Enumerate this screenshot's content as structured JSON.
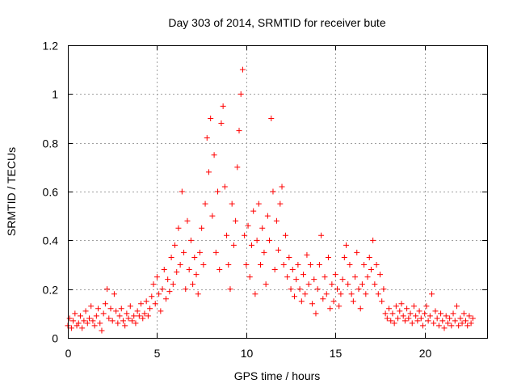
{
  "chart_data": {
    "type": "scatter",
    "title": "Day 303 of 2014, SRMTID for receiver bute",
    "xlabel": "GPS time / hours",
    "ylabel": "SRMTID / TECUs",
    "xlim": [
      0,
      23.5
    ],
    "ylim": [
      0,
      1.2
    ],
    "x_ticks": [
      0,
      5,
      10,
      15,
      20
    ],
    "x_tick_labels": [
      "0",
      "5",
      "10",
      "15",
      "20"
    ],
    "y_ticks": [
      0,
      0.2,
      0.4,
      0.6,
      0.8,
      1.0,
      1.2
    ],
    "y_tick_labels": [
      "0",
      "0.2",
      "0.4",
      "0.6",
      "0.8",
      "1",
      "1.2"
    ],
    "grid": true,
    "marker": "+",
    "series": [
      {
        "name": "SRMTID",
        "color": "#ff0000",
        "points": [
          [
            0.0,
            0.05
          ],
          [
            0.1,
            0.08
          ],
          [
            0.2,
            0.04
          ],
          [
            0.3,
            0.07
          ],
          [
            0.4,
            0.1
          ],
          [
            0.5,
            0.05
          ],
          [
            0.6,
            0.06
          ],
          [
            0.7,
            0.09
          ],
          [
            0.8,
            0.04
          ],
          [
            0.9,
            0.07
          ],
          [
            1.0,
            0.11
          ],
          [
            1.1,
            0.06
          ],
          [
            1.2,
            0.08
          ],
          [
            1.3,
            0.13
          ],
          [
            1.4,
            0.07
          ],
          [
            1.5,
            0.05
          ],
          [
            1.6,
            0.09
          ],
          [
            1.7,
            0.12
          ],
          [
            1.8,
            0.06
          ],
          [
            1.9,
            0.03
          ],
          [
            2.0,
            0.1
          ],
          [
            2.1,
            0.14
          ],
          [
            2.2,
            0.2
          ],
          [
            2.3,
            0.08
          ],
          [
            2.4,
            0.12
          ],
          [
            2.5,
            0.07
          ],
          [
            2.6,
            0.18
          ],
          [
            2.7,
            0.11
          ],
          [
            2.8,
            0.06
          ],
          [
            2.9,
            0.09
          ],
          [
            3.0,
            0.12
          ],
          [
            3.1,
            0.07
          ],
          [
            3.2,
            0.05
          ],
          [
            3.3,
            0.1
          ],
          [
            3.4,
            0.08
          ],
          [
            3.5,
            0.13
          ],
          [
            3.6,
            0.07
          ],
          [
            3.7,
            0.09
          ],
          [
            3.8,
            0.06
          ],
          [
            3.9,
            0.11
          ],
          [
            4.0,
            0.09
          ],
          [
            4.1,
            0.14
          ],
          [
            4.2,
            0.08
          ],
          [
            4.3,
            0.1
          ],
          [
            4.4,
            0.15
          ],
          [
            4.5,
            0.09
          ],
          [
            4.6,
            0.12
          ],
          [
            4.7,
            0.17
          ],
          [
            4.8,
            0.22
          ],
          [
            4.9,
            0.14
          ],
          [
            5.0,
            0.25
          ],
          [
            5.1,
            0.18
          ],
          [
            5.2,
            0.11
          ],
          [
            5.3,
            0.2
          ],
          [
            5.4,
            0.28
          ],
          [
            5.5,
            0.16
          ],
          [
            5.6,
            0.24
          ],
          [
            5.7,
            0.19
          ],
          [
            5.8,
            0.33
          ],
          [
            5.9,
            0.22
          ],
          [
            6.0,
            0.38
          ],
          [
            6.1,
            0.27
          ],
          [
            6.2,
            0.45
          ],
          [
            6.3,
            0.3
          ],
          [
            6.4,
            0.6
          ],
          [
            6.5,
            0.35
          ],
          [
            6.6,
            0.2
          ],
          [
            6.7,
            0.48
          ],
          [
            6.8,
            0.28
          ],
          [
            6.9,
            0.4
          ],
          [
            7.0,
            0.22
          ],
          [
            7.1,
            0.33
          ],
          [
            7.2,
            0.26
          ],
          [
            7.3,
            0.18
          ],
          [
            7.4,
            0.35
          ],
          [
            7.5,
            0.45
          ],
          [
            7.6,
            0.3
          ],
          [
            7.7,
            0.55
          ],
          [
            7.8,
            0.82
          ],
          [
            7.9,
            0.68
          ],
          [
            8.0,
            0.9
          ],
          [
            8.1,
            0.5
          ],
          [
            8.2,
            0.75
          ],
          [
            8.3,
            0.35
          ],
          [
            8.4,
            0.6
          ],
          [
            8.5,
            0.28
          ],
          [
            8.6,
            0.88
          ],
          [
            8.7,
            0.95
          ],
          [
            8.8,
            0.62
          ],
          [
            8.9,
            0.42
          ],
          [
            9.0,
            0.3
          ],
          [
            9.1,
            0.2
          ],
          [
            9.2,
            0.55
          ],
          [
            9.3,
            0.38
          ],
          [
            9.4,
            0.48
          ],
          [
            9.5,
            0.7
          ],
          [
            9.6,
            0.85
          ],
          [
            9.7,
            1.0
          ],
          [
            9.8,
            1.1
          ],
          [
            9.9,
            0.42
          ],
          [
            10.0,
            0.3
          ],
          [
            10.1,
            0.46
          ],
          [
            10.2,
            0.25
          ],
          [
            10.3,
            0.38
          ],
          [
            10.4,
            0.52
          ],
          [
            10.5,
            0.18
          ],
          [
            10.6,
            0.4
          ],
          [
            10.7,
            0.55
          ],
          [
            10.8,
            0.3
          ],
          [
            10.9,
            0.45
          ],
          [
            11.0,
            0.35
          ],
          [
            11.1,
            0.22
          ],
          [
            11.2,
            0.5
          ],
          [
            11.3,
            0.4
          ],
          [
            11.4,
            0.9
          ],
          [
            11.5,
            0.6
          ],
          [
            11.6,
            0.28
          ],
          [
            11.7,
            0.48
          ],
          [
            11.8,
            0.36
          ],
          [
            11.9,
            0.55
          ],
          [
            12.0,
            0.62
          ],
          [
            12.1,
            0.3
          ],
          [
            12.2,
            0.42
          ],
          [
            12.3,
            0.25
          ],
          [
            12.4,
            0.33
          ],
          [
            12.5,
            0.2
          ],
          [
            12.6,
            0.28
          ],
          [
            12.7,
            0.17
          ],
          [
            12.8,
            0.24
          ],
          [
            12.9,
            0.3
          ],
          [
            13.0,
            0.2
          ],
          [
            13.1,
            0.15
          ],
          [
            13.2,
            0.26
          ],
          [
            13.3,
            0.18
          ],
          [
            13.4,
            0.34
          ],
          [
            13.5,
            0.22
          ],
          [
            13.6,
            0.3
          ],
          [
            13.7,
            0.14
          ],
          [
            13.8,
            0.24
          ],
          [
            13.9,
            0.1
          ],
          [
            14.0,
            0.2
          ],
          [
            14.1,
            0.3
          ],
          [
            14.2,
            0.42
          ],
          [
            14.3,
            0.16
          ],
          [
            14.4,
            0.25
          ],
          [
            14.5,
            0.18
          ],
          [
            14.6,
            0.33
          ],
          [
            14.7,
            0.12
          ],
          [
            14.8,
            0.22
          ],
          [
            14.9,
            0.15
          ],
          [
            15.0,
            0.26
          ],
          [
            15.1,
            0.2
          ],
          [
            15.2,
            0.13
          ],
          [
            15.3,
            0.18
          ],
          [
            15.4,
            0.24
          ],
          [
            15.5,
            0.33
          ],
          [
            15.6,
            0.38
          ],
          [
            15.7,
            0.22
          ],
          [
            15.8,
            0.3
          ],
          [
            15.9,
            0.18
          ],
          [
            16.0,
            0.15
          ],
          [
            16.1,
            0.25
          ],
          [
            16.2,
            0.35
          ],
          [
            16.3,
            0.2
          ],
          [
            16.4,
            0.12
          ],
          [
            16.5,
            0.22
          ],
          [
            16.6,
            0.3
          ],
          [
            16.7,
            0.18
          ],
          [
            16.8,
            0.25
          ],
          [
            16.9,
            0.33
          ],
          [
            17.0,
            0.28
          ],
          [
            17.1,
            0.4
          ],
          [
            17.2,
            0.22
          ],
          [
            17.3,
            0.3
          ],
          [
            17.4,
            0.18
          ],
          [
            17.5,
            0.26
          ],
          [
            17.6,
            0.15
          ],
          [
            17.7,
            0.2
          ],
          [
            17.8,
            0.1
          ],
          [
            17.9,
            0.08
          ],
          [
            18.0,
            0.12
          ],
          [
            18.1,
            0.07
          ],
          [
            18.2,
            0.1
          ],
          [
            18.3,
            0.06
          ],
          [
            18.4,
            0.13
          ],
          [
            18.5,
            0.08
          ],
          [
            18.6,
            0.11
          ],
          [
            18.7,
            0.14
          ],
          [
            18.8,
            0.09
          ],
          [
            18.9,
            0.07
          ],
          [
            19.0,
            0.12
          ],
          [
            19.1,
            0.08
          ],
          [
            19.2,
            0.1
          ],
          [
            19.3,
            0.06
          ],
          [
            19.4,
            0.13
          ],
          [
            19.5,
            0.09
          ],
          [
            19.6,
            0.07
          ],
          [
            19.7,
            0.11
          ],
          [
            19.8,
            0.08
          ],
          [
            19.9,
            0.05
          ],
          [
            20.0,
            0.1
          ],
          [
            20.1,
            0.13
          ],
          [
            20.2,
            0.07
          ],
          [
            20.3,
            0.09
          ],
          [
            20.4,
            0.18
          ],
          [
            20.5,
            0.06
          ],
          [
            20.6,
            0.11
          ],
          [
            20.7,
            0.08
          ],
          [
            20.8,
            0.05
          ],
          [
            20.9,
            0.1
          ],
          [
            21.0,
            0.07
          ],
          [
            21.1,
            0.04
          ],
          [
            21.2,
            0.09
          ],
          [
            21.3,
            0.06
          ],
          [
            21.4,
            0.08
          ],
          [
            21.5,
            0.05
          ],
          [
            21.6,
            0.1
          ],
          [
            21.7,
            0.07
          ],
          [
            21.8,
            0.13
          ],
          [
            21.9,
            0.05
          ],
          [
            22.0,
            0.08
          ],
          [
            22.1,
            0.06
          ],
          [
            22.2,
            0.1
          ],
          [
            22.3,
            0.07
          ],
          [
            22.4,
            0.05
          ],
          [
            22.5,
            0.09
          ],
          [
            22.6,
            0.06
          ],
          [
            22.7,
            0.08
          ]
        ]
      }
    ]
  }
}
